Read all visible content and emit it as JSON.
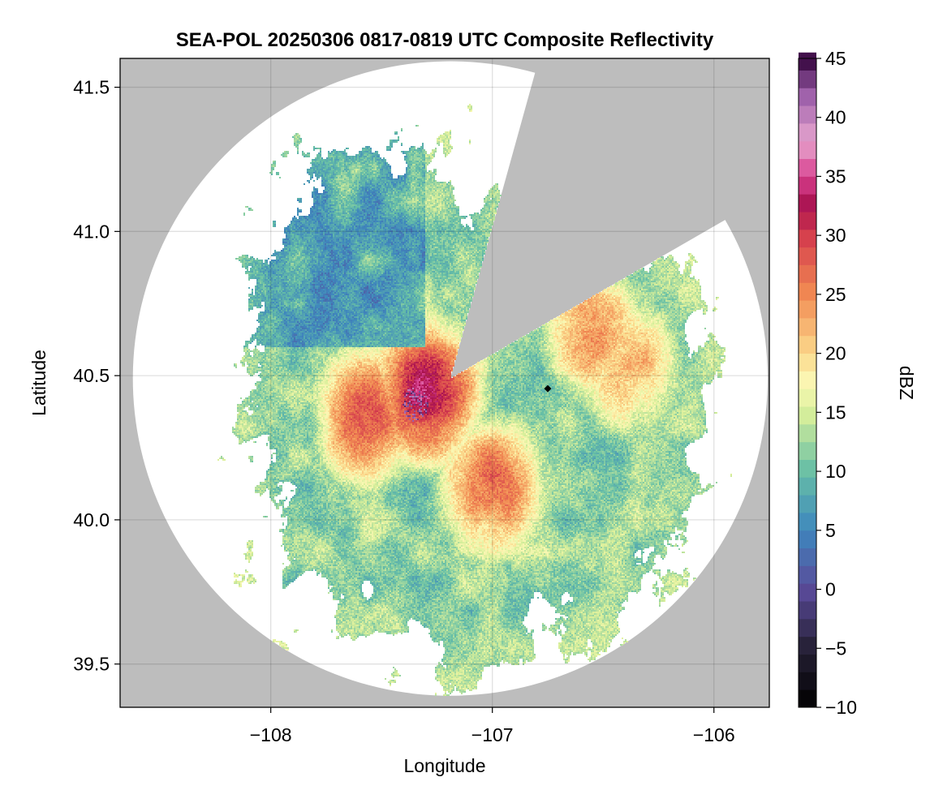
{
  "chart_data": {
    "type": "heatmap",
    "title": "SEA-POL 20250306 0817-0819 UTC Composite Reflectivity",
    "xlabel": "Longitude",
    "ylabel": "Latitude",
    "xlim": [
      -108.68,
      -105.75
    ],
    "ylim": [
      39.35,
      41.6
    ],
    "xticks": [
      -108,
      -107,
      -106
    ],
    "xtick_labels": [
      "−108",
      "−107",
      "−106"
    ],
    "yticks": [
      39.5,
      40.0,
      40.5,
      41.0,
      41.5
    ],
    "ytick_labels": [
      "39.5",
      "40.0",
      "40.5",
      "41.0",
      "41.5"
    ],
    "grid": true,
    "background_color": "#bdbdbd",
    "radar": {
      "lon": -107.19,
      "lat": 40.49,
      "range_lat_deg": 1.1,
      "blocked_sectors_deg_from_north": [
        [
          15.5,
          20.0
        ],
        [
          20.0,
          60.0
        ]
      ]
    },
    "marker": {
      "lon": -106.75,
      "lat": 40.455,
      "shape": "diamond",
      "color": "#000000"
    },
    "colorbar": {
      "label": "dBZ",
      "min": -10,
      "max": 45,
      "step": 1.5,
      "ticks": [
        -10,
        -5,
        0,
        5,
        10,
        15,
        20,
        25,
        30,
        35,
        40,
        45
      ],
      "tick_labels": [
        "−10",
        "−5",
        "0",
        "5",
        "10",
        "15",
        "20",
        "25",
        "30",
        "35",
        "40",
        "45"
      ],
      "stops": [
        {
          "v": -10,
          "c": "#000000"
        },
        {
          "v": -5,
          "c": "#252035"
        },
        {
          "v": 0,
          "c": "#5a4a99"
        },
        {
          "v": 5,
          "c": "#3e86bd"
        },
        {
          "v": 10,
          "c": "#67bfa6"
        },
        {
          "v": 15,
          "c": "#d9ef9a"
        },
        {
          "v": 17.5,
          "c": "#fbf8b5"
        },
        {
          "v": 20,
          "c": "#fbd98c"
        },
        {
          "v": 25,
          "c": "#f18a52"
        },
        {
          "v": 30,
          "c": "#d53d4d"
        },
        {
          "v": 32.5,
          "c": "#a8114f"
        },
        {
          "v": 35,
          "c": "#d8408f"
        },
        {
          "v": 38,
          "c": "#e7a6cf"
        },
        {
          "v": 42,
          "c": "#9b5da9"
        },
        {
          "v": 45,
          "c": "#3b0a44"
        }
      ]
    },
    "reflectivity_field": {
      "description_units": "dBZ",
      "cores": [
        {
          "lon": -107.55,
          "lat": 40.36,
          "dbz": 28
        },
        {
          "lon": -107.3,
          "lat": 40.44,
          "dbz": 33
        },
        {
          "lon": -107.0,
          "lat": 40.12,
          "dbz": 27
        },
        {
          "lon": -106.55,
          "lat": 40.65,
          "dbz": 24
        },
        {
          "lon": -106.38,
          "lat": 40.52,
          "dbz": 22
        }
      ]
    }
  }
}
